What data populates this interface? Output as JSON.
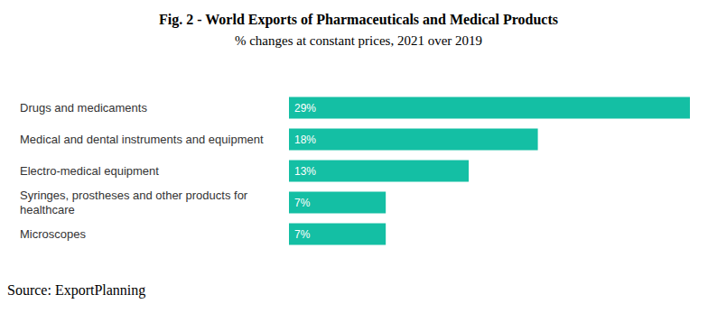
{
  "chart_data": {
    "type": "bar",
    "title": "Fig. 2 - World Exports of Pharmaceuticals and Medical Products",
    "subtitle": "% changes at constant prices, 2021 over 2019",
    "source": "Source: ExportPlanning",
    "categories": [
      "Drugs and medicaments",
      "Medical and dental instruments and equipment",
      "Electro-medical equipment",
      "Syringes, prostheses and other products for healthcare",
      "Microscopes"
    ],
    "values": [
      29,
      18,
      13,
      7,
      7
    ],
    "value_labels": [
      "29%",
      "18%",
      "13%",
      "7%",
      "7%"
    ],
    "color": "#14bfa4",
    "xlim": [
      0,
      29
    ],
    "orientation": "horizontal",
    "data_labels": true,
    "tick_labels": "y",
    "grid": false
  }
}
